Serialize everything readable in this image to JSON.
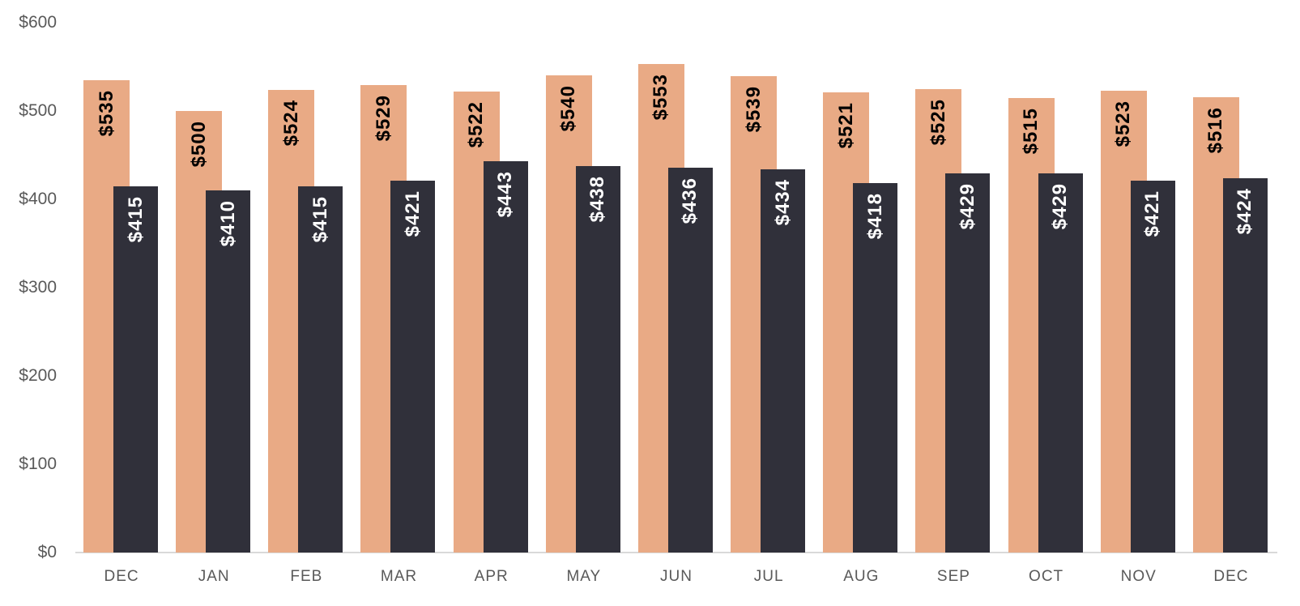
{
  "chart_data": {
    "type": "bar",
    "title": "",
    "categories": [
      "DEC",
      "JAN",
      "FEB",
      "MAR",
      "APR",
      "MAY",
      "JUN",
      "JUL",
      "AUG",
      "SEP",
      "OCT",
      "NOV",
      "DEC"
    ],
    "series": [
      {
        "name": "orange-series",
        "color": "#E9AA85",
        "label_color": "#000000",
        "values": [
          535,
          500,
          524,
          529,
          522,
          540,
          553,
          539,
          521,
          525,
          515,
          523,
          516
        ],
        "data_labels": [
          "$535",
          "$500",
          "$524",
          "$529",
          "$522",
          "$540",
          "$553",
          "$539",
          "$521",
          "$525",
          "$515",
          "$523",
          "$516"
        ]
      },
      {
        "name": "dark-series",
        "color": "#30303A",
        "label_color": "#FFFFFF",
        "values": [
          415,
          410,
          415,
          421,
          443,
          438,
          436,
          434,
          418,
          429,
          429,
          421,
          424
        ],
        "data_labels": [
          "$415",
          "$410",
          "$415",
          "$421",
          "$443",
          "$438",
          "$436",
          "$434",
          "$418",
          "$429",
          "$429",
          "$421",
          "$424"
        ]
      }
    ],
    "y_axis": {
      "min": 0,
      "max": 600,
      "ticks": [
        {
          "label": "$0",
          "value": 0
        },
        {
          "label": "$100",
          "value": 100
        },
        {
          "label": "$200",
          "value": 200
        },
        {
          "label": "$300",
          "value": 300
        },
        {
          "label": "$400",
          "value": 400
        },
        {
          "label": "$500",
          "value": 500
        },
        {
          "label": "$600",
          "value": 600
        }
      ]
    },
    "grid": false,
    "legend": false,
    "axis_text_color": "#595959",
    "axis_line_color": "#D9D9D9",
    "background_color": "#FFFFFF"
  }
}
